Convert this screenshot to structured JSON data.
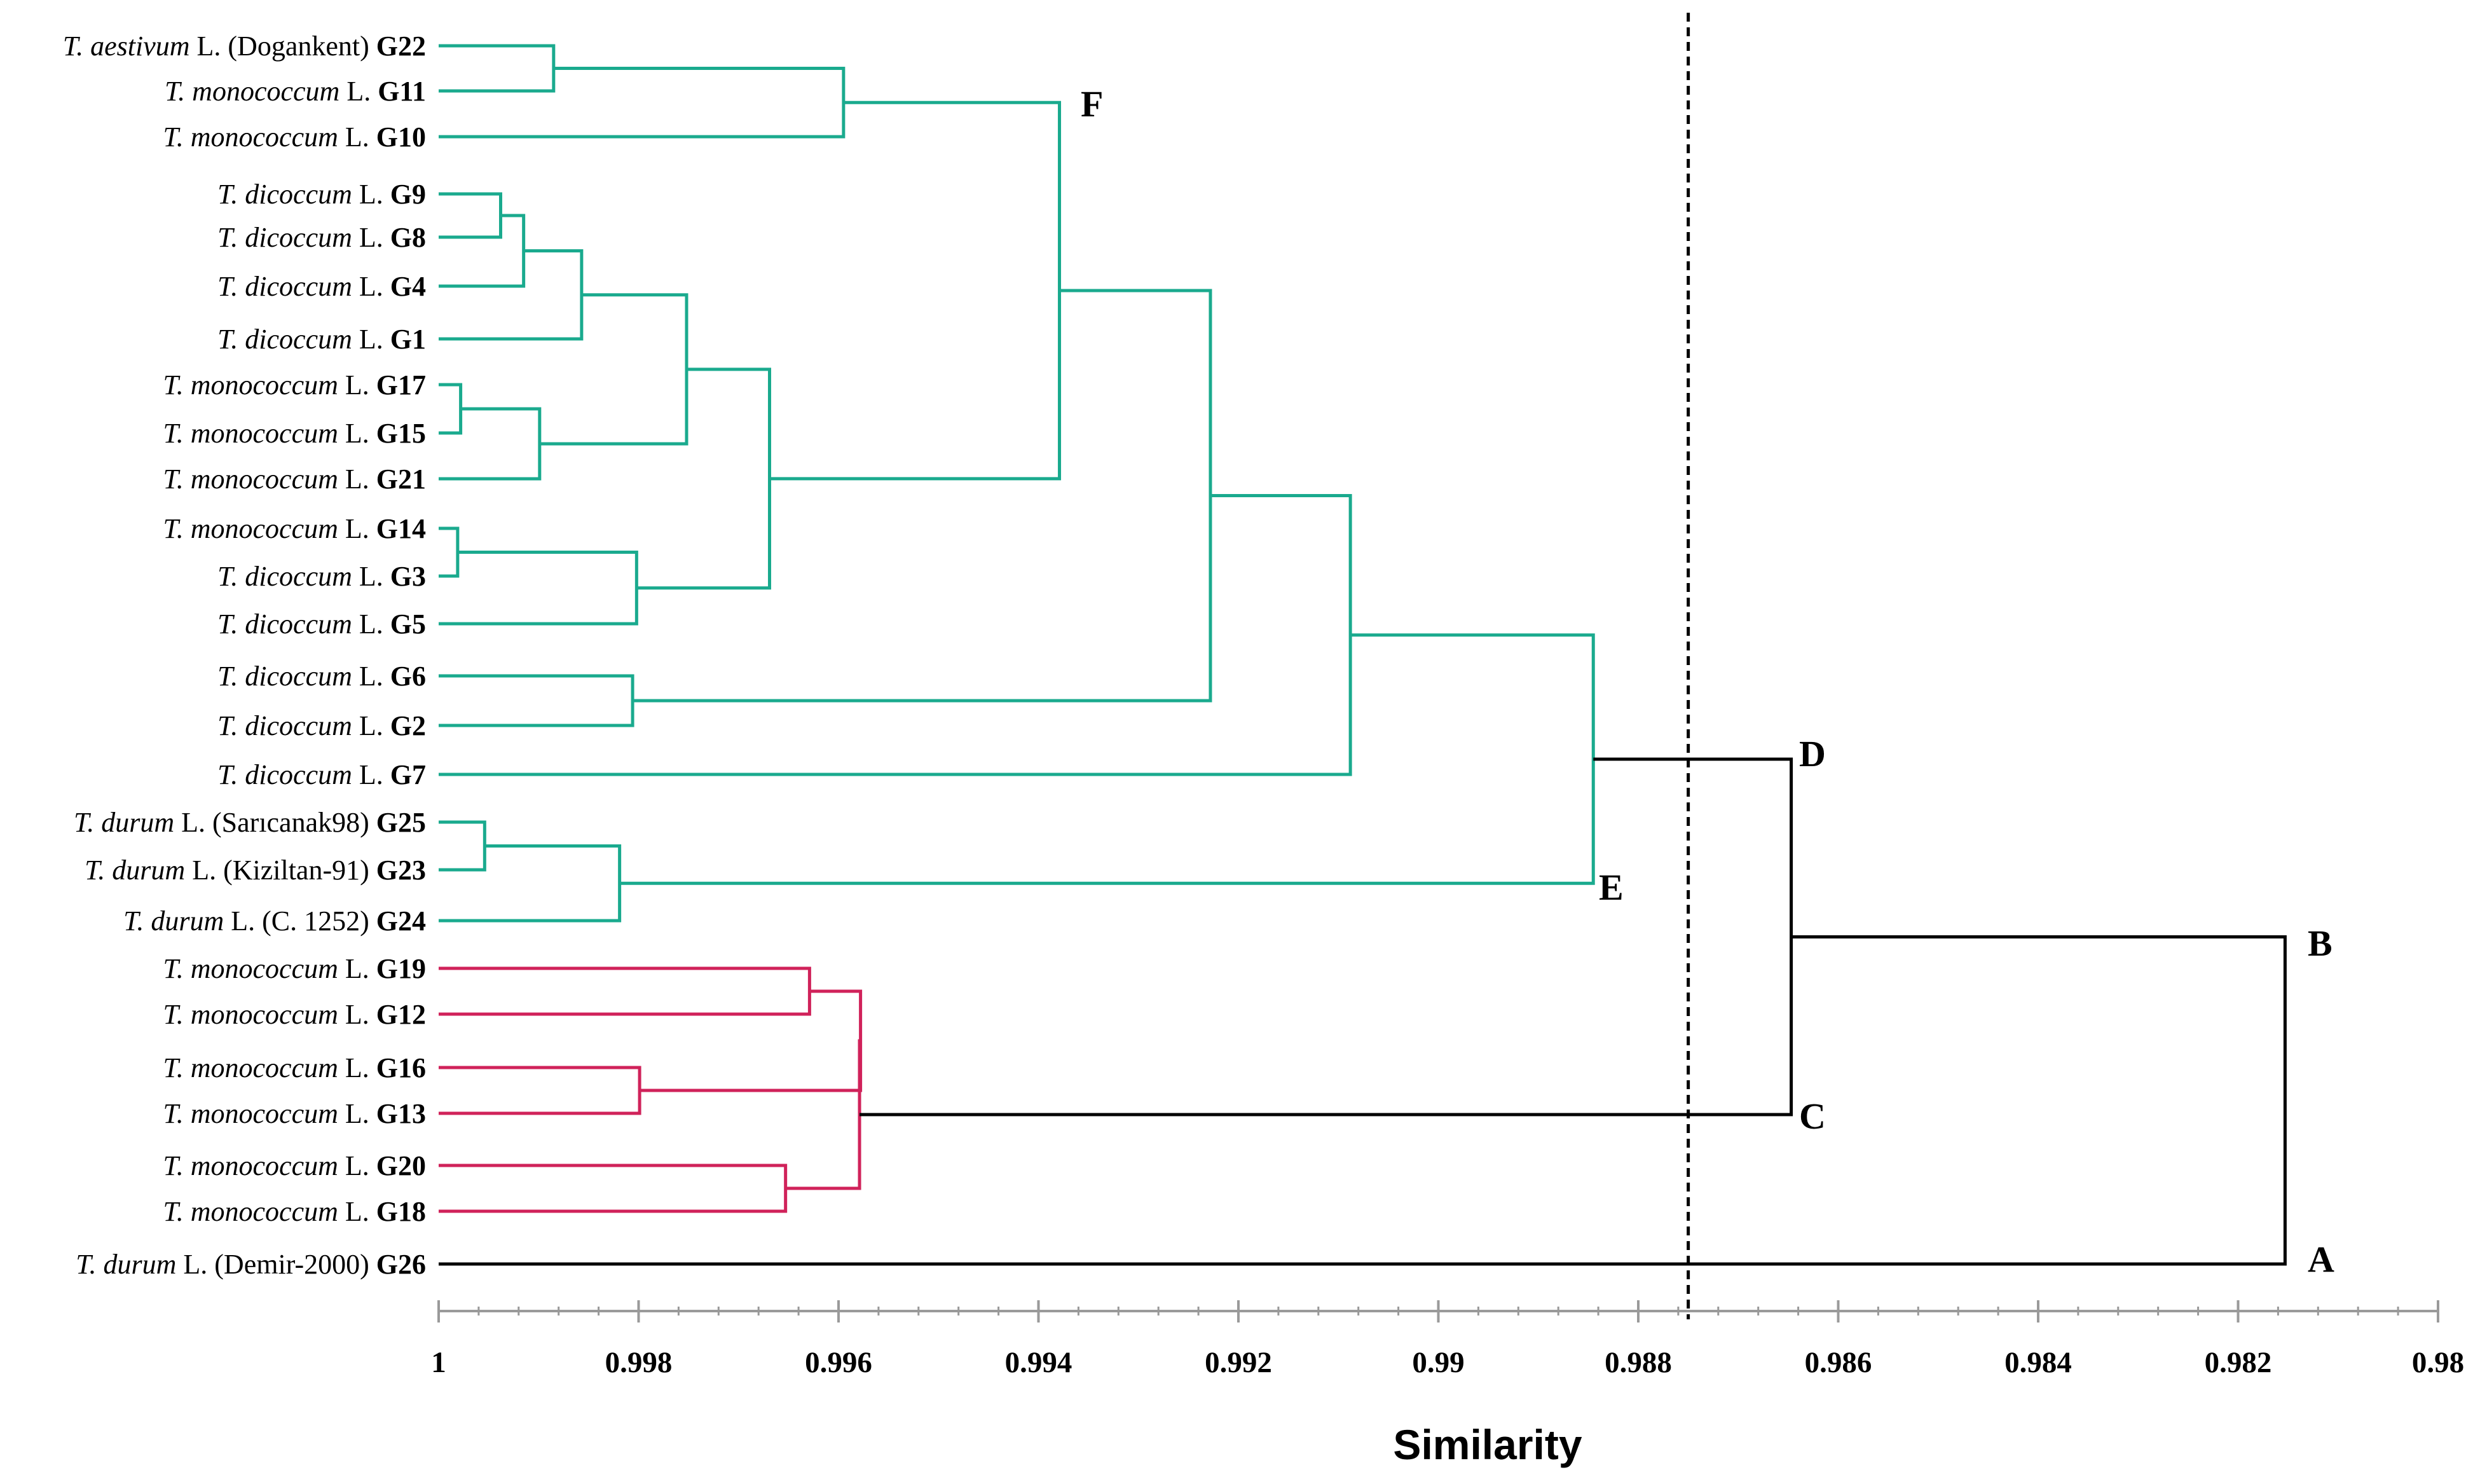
{
  "colors": {
    "teal": "#1aaa8e",
    "crimson": "#d0225a",
    "black": "#000000",
    "axis": "#9a9a9a"
  },
  "chart_data": {
    "type": "dendrogram",
    "xlabel": "Similarity",
    "xlim": [
      1,
      0.98
    ],
    "ticks": [
      "1",
      "0.998",
      "0.996",
      "0.994",
      "0.992",
      "0.99",
      "0.988",
      "0.986",
      "0.984",
      "0.982",
      "0.98"
    ],
    "cutoff_line": 0.9875,
    "leaves": [
      {
        "species": "T. aestivum",
        "author": " L. (Dogankent)",
        "code": "G22"
      },
      {
        "species": "T. monococcum",
        "author": " L.",
        "code": "G11"
      },
      {
        "species": "T. monococcum",
        "author": " L.",
        "code": "G10"
      },
      {
        "species": "T. dicoccum",
        "author": " L.",
        "code": "G9"
      },
      {
        "species": "T. dicoccum",
        "author": " L.",
        "code": "G8"
      },
      {
        "species": "T. dicoccum",
        "author": " L.",
        "code": "G4"
      },
      {
        "species": "T. dicoccum",
        "author": " L.",
        "code": "G1"
      },
      {
        "species": "T. monococcum",
        "author": " L.",
        "code": "G17"
      },
      {
        "species": "T. monococcum",
        "author": " L.",
        "code": "G15"
      },
      {
        "species": "T. monococcum",
        "author": " L.",
        "code": "G21"
      },
      {
        "species": "T. monococcum",
        "author": " L.",
        "code": "G14"
      },
      {
        "species": "T. dicoccum",
        "author": " L.",
        "code": "G3"
      },
      {
        "species": "T. dicoccum",
        "author": " L.",
        "code": "G5"
      },
      {
        "species": "T. dicoccum",
        "author": " L.",
        "code": "G6"
      },
      {
        "species": "T. dicoccum",
        "author": " L.",
        "code": "G2"
      },
      {
        "species": "T. dicoccum",
        "author": " L.",
        "code": "G7"
      },
      {
        "species": "T. durum",
        "author": " L. (Sarıcanak98)",
        "code": "G25"
      },
      {
        "species": "T. durum",
        "author": " L. (Kiziltan-91)",
        "code": "G23"
      },
      {
        "species": "T. durum",
        "author": " L. (C. 1252)",
        "code": "G24"
      },
      {
        "species": "T. monococcum",
        "author": " L.",
        "code": "G19"
      },
      {
        "species": "T. monococcum",
        "author": " L.",
        "code": "G12"
      },
      {
        "species": "T. monococcum",
        "author": " L.",
        "code": "G16"
      },
      {
        "species": "T. monococcum",
        "author": " L.",
        "code": "G13"
      },
      {
        "species": "T. monococcum",
        "author": " L.",
        "code": "G20"
      },
      {
        "species": "T. monococcum",
        "author": " L.",
        "code": "G18"
      },
      {
        "species": "T. durum",
        "author": " L. (Demir-2000)",
        "code": "G26"
      }
    ],
    "cluster_labels": [
      "F",
      "E",
      "D",
      "C",
      "B",
      "A"
    ],
    "merges": [
      {
        "id": "n1",
        "a": "G22",
        "b": "G11",
        "sim": 0.99885,
        "color": "teal"
      },
      {
        "id": "n2",
        "a": "n1",
        "b": "G10",
        "sim": 0.99595,
        "color": "teal"
      },
      {
        "id": "n3",
        "a": "G9",
        "b": "G8",
        "sim": 0.99938,
        "color": "teal"
      },
      {
        "id": "n4",
        "a": "n3",
        "b": "G4",
        "sim": 0.99915,
        "color": "teal"
      },
      {
        "id": "n5",
        "a": "n4",
        "b": "G1",
        "sim": 0.99857,
        "color": "teal"
      },
      {
        "id": "n6",
        "a": "G17",
        "b": "G15",
        "sim": 0.99978,
        "color": "teal"
      },
      {
        "id": "n7",
        "a": "n6",
        "b": "G21",
        "sim": 0.99899,
        "color": "teal"
      },
      {
        "id": "n8",
        "a": "n5",
        "b": "n7",
        "sim": 0.99752,
        "color": "teal"
      },
      {
        "id": "n9",
        "a": "G14",
        "b": "G3",
        "sim": 0.99981,
        "color": "teal"
      },
      {
        "id": "n10",
        "a": "n9",
        "b": "G5",
        "sim": 0.99802,
        "color": "teal"
      },
      {
        "id": "n11",
        "a": "n8",
        "b": "n10",
        "sim": 0.99669,
        "color": "teal"
      },
      {
        "id": "n12",
        "a": "n2",
        "b": "n11",
        "sim": 0.99379,
        "color": "teal"
      },
      {
        "id": "n13",
        "a": "G6",
        "b": "G2",
        "sim": 0.99806,
        "color": "teal"
      },
      {
        "id": "n14",
        "a": "n12",
        "b": "n13",
        "sim": 0.99228,
        "color": "teal"
      },
      {
        "id": "n15",
        "a": "n14",
        "b": "G7",
        "sim": 0.99088,
        "color": "teal"
      },
      {
        "id": "n16",
        "a": "G25",
        "b": "G23",
        "sim": 0.99954,
        "color": "teal"
      },
      {
        "id": "n17",
        "a": "n16",
        "b": "G24",
        "sim": 0.99819,
        "color": "teal"
      },
      {
        "id": "n18",
        "a": "n15",
        "b": "n17",
        "sim": 0.98845,
        "color": "teal"
      },
      {
        "id": "n19",
        "a": "G19",
        "b": "G12",
        "sim": 0.99629,
        "color": "crimson"
      },
      {
        "id": "n20",
        "a": "G16",
        "b": "G13",
        "sim": 0.99799,
        "color": "crimson"
      },
      {
        "id": "n21",
        "a": "n19",
        "b": "n20",
        "sim": 0.99578,
        "color": "crimson"
      },
      {
        "id": "n22",
        "a": "G20",
        "b": "G18",
        "sim": 0.99653,
        "color": "crimson"
      },
      {
        "id": "n23",
        "a": "n21",
        "b": "n22",
        "sim": 0.99579,
        "color": "crimson"
      },
      {
        "id": "n24",
        "a": "n18",
        "b": "n23",
        "sim": 0.98647,
        "color": "black"
      },
      {
        "id": "n25",
        "a": "n24",
        "b": "G26",
        "sim": 0.98153,
        "color": "black"
      }
    ]
  }
}
